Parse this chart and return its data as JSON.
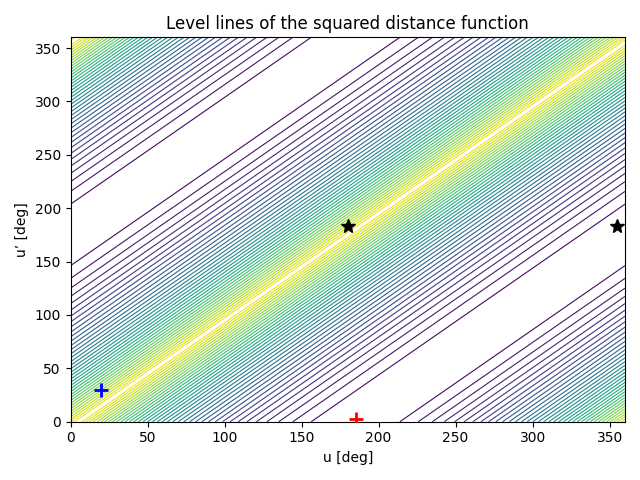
{
  "title": "Level lines of the squared distance function",
  "xlabel": "u [deg]",
  "ylabel": "u’ [deg]",
  "xlim": [
    0,
    360
  ],
  "ylim": [
    0,
    360
  ],
  "xticks": [
    0,
    50,
    100,
    150,
    200,
    250,
    300,
    350
  ],
  "yticks": [
    0,
    50,
    100,
    150,
    200,
    250,
    300,
    350
  ],
  "star_points": [
    [
      180,
      183
    ],
    [
      355,
      183
    ]
  ],
  "blue_plus": [
    20,
    30
  ],
  "red_plus": [
    185,
    3
  ],
  "n_levels": 40,
  "cmap": "viridis",
  "c": 185,
  "figsize": [
    6.4,
    4.8
  ],
  "dpi": 100
}
